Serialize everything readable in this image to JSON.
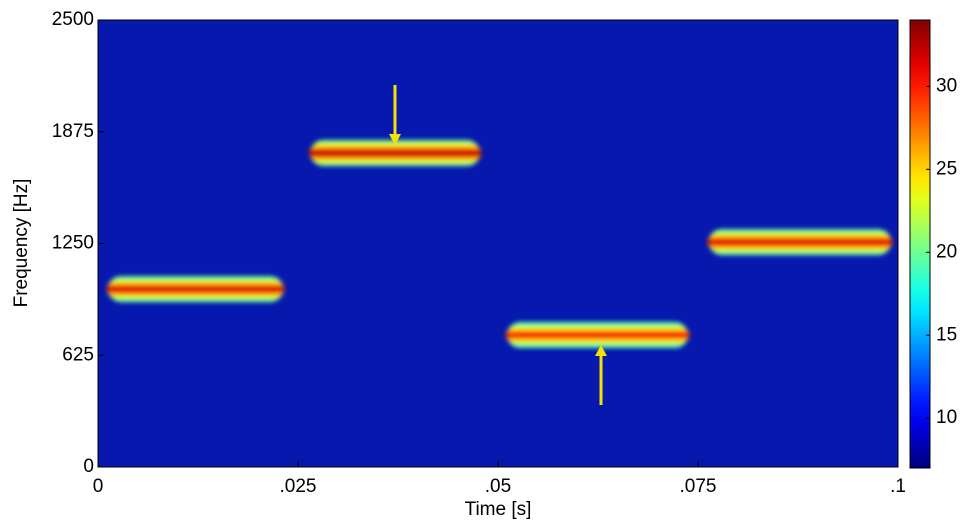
{
  "chart_data": {
    "type": "spectrogram",
    "x_label": "Time [s]",
    "y_label": "Frequency [Hz]",
    "xlim": [
      0,
      0.1
    ],
    "xticks": [
      0,
      {
        "value": 0.025,
        "label": ".025"
      },
      {
        "value": 0.05,
        "label": ".05"
      },
      {
        "value": 0.075,
        "label": ".075"
      },
      {
        "value": 0.1,
        "label": ".1"
      }
    ],
    "ylim": [
      0,
      2500
    ],
    "yticks": [
      0,
      625,
      1250,
      1875,
      2500
    ],
    "clim": [
      7,
      34
    ],
    "cticks": [
      10,
      15,
      20,
      25,
      30
    ],
    "colormap": "jet",
    "background_color": "#0618ae",
    "arrow_color": "#f5e400",
    "segments": {
      "t_start": [
        0.001,
        0.0263,
        0.0509,
        0.0761
      ],
      "t_end": [
        0.0234,
        0.048,
        0.074,
        0.0994
      ],
      "frequency": [
        995,
        1756,
        738,
        1258
      ],
      "level": [
        32,
        33,
        31,
        32
      ]
    }
  }
}
